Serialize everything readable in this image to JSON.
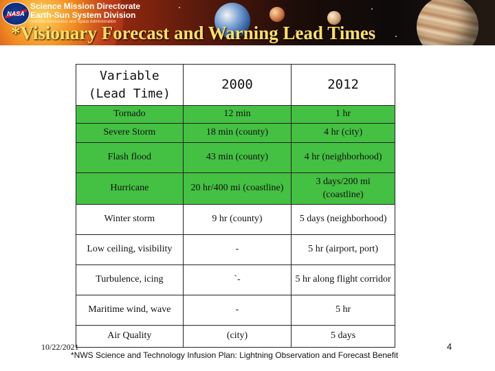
{
  "header": {
    "logo_text": "NASA",
    "directorate": "Science Mission Directorate",
    "division": "Earth-Sun System Division",
    "agency": "National Aeronautics and Space Administration",
    "title": "*Visionary Forecast and Warning Lead Times"
  },
  "table": {
    "columns": [
      "Variable (Lead Time)",
      "2000",
      "2012"
    ],
    "rows": [
      {
        "variable": "Tornado",
        "y2000": "12 min",
        "y2012": "1 hr",
        "highlight": true
      },
      {
        "variable": "Severe Storm",
        "y2000": "18 min (county)",
        "y2012": "4 hr (city)",
        "highlight": true
      },
      {
        "variable": "Flash flood",
        "y2000": "43 min (county)",
        "y2012": "4 hr (neighborhood)",
        "highlight": true
      },
      {
        "variable": "Hurricane",
        "y2000": "20 hr/400 mi (coastline)",
        "y2012": "3 days/200 mi (coastline)",
        "highlight": true
      },
      {
        "variable": "Winter storm",
        "y2000": "9 hr (county)",
        "y2012": "5 days (neighborhood)",
        "highlight": false
      },
      {
        "variable": "Low ceiling, visibility",
        "y2000": "-",
        "y2012": "5 hr (airport, port)",
        "highlight": false
      },
      {
        "variable": "Turbulence, icing",
        "y2000": "`-",
        "y2012": "5 hr along flight corridor",
        "highlight": false
      },
      {
        "variable": "Maritime wind, wave",
        "y2000": "-",
        "y2012": "5 hr",
        "highlight": false
      },
      {
        "variable": "Air Quality",
        "y2000": "(city)",
        "y2012": "5 days",
        "highlight": false
      }
    ]
  },
  "footer": {
    "date": "10/22/2021",
    "footnote": "*NWS Science and Technology Infusion Plan: Lightning Observation and Forecast Benefit",
    "page_number": "4"
  },
  "colors": {
    "highlight_row": "#44c043",
    "title": "#ffe066"
  }
}
